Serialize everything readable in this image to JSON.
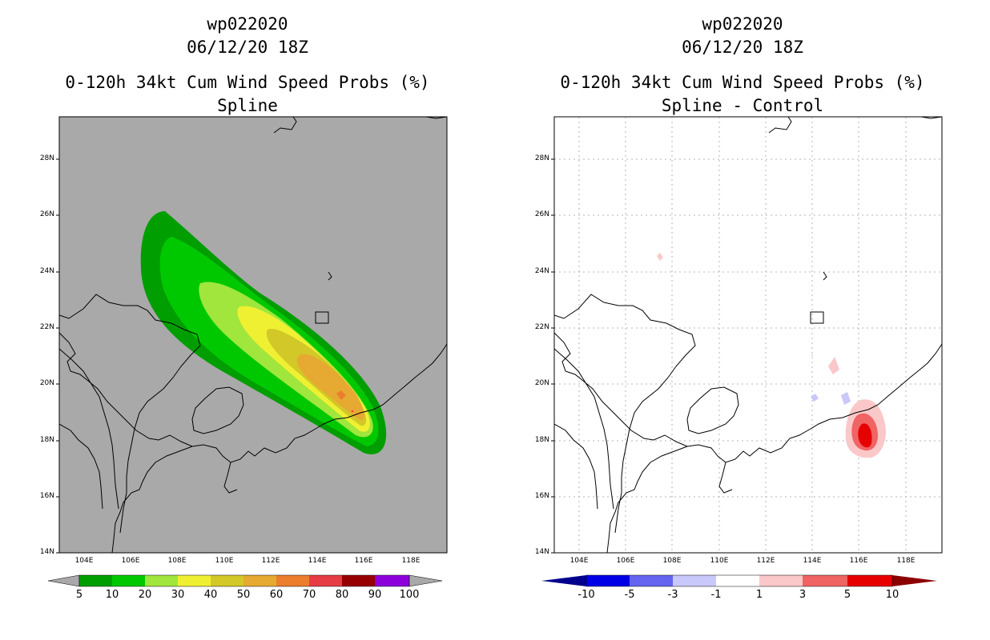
{
  "panels": [
    {
      "storm_id": "wp022020",
      "datetime": "06/12/20 18Z",
      "title": "0-120h 34kt Cum Wind Speed Probs (%)",
      "subtitle": "Spline",
      "colorbar": {
        "labels": [
          "5",
          "10",
          "20",
          "30",
          "40",
          "50",
          "60",
          "70",
          "80",
          "90",
          "100"
        ],
        "colors": [
          "#009e00",
          "#00c800",
          "#00e600",
          "#a0e63c",
          "#f0f032",
          "#d2c828",
          "#e6aa32",
          "#eb7d2d",
          "#e63c46",
          "#960000",
          "#8c00dc"
        ]
      }
    },
    {
      "storm_id": "wp022020",
      "datetime": "06/12/20 18Z",
      "title": "0-120h 34kt Cum Wind Speed Probs (%)",
      "subtitle": "Spline - Control",
      "colorbar": {
        "labels": [
          "-10",
          "-5",
          "-3",
          "-1",
          "1",
          "3",
          "5",
          "10"
        ],
        "colors": [
          "#00008c",
          "#0000e6",
          "#6464f0",
          "#c8c8fa",
          "#ffffff",
          "#fac8c8",
          "#f06464",
          "#e60000",
          "#8c0000"
        ]
      }
    }
  ],
  "axes": {
    "lat_labels": [
      "28N",
      "26N",
      "24N",
      "22N",
      "20N",
      "18N",
      "16N",
      "14N"
    ],
    "lon_labels": [
      "104E",
      "106E",
      "108E",
      "110E",
      "112E",
      "114E",
      "116E",
      "118E"
    ]
  },
  "colors": {
    "map_background": "#a9a9a9",
    "coast": "#000000"
  }
}
